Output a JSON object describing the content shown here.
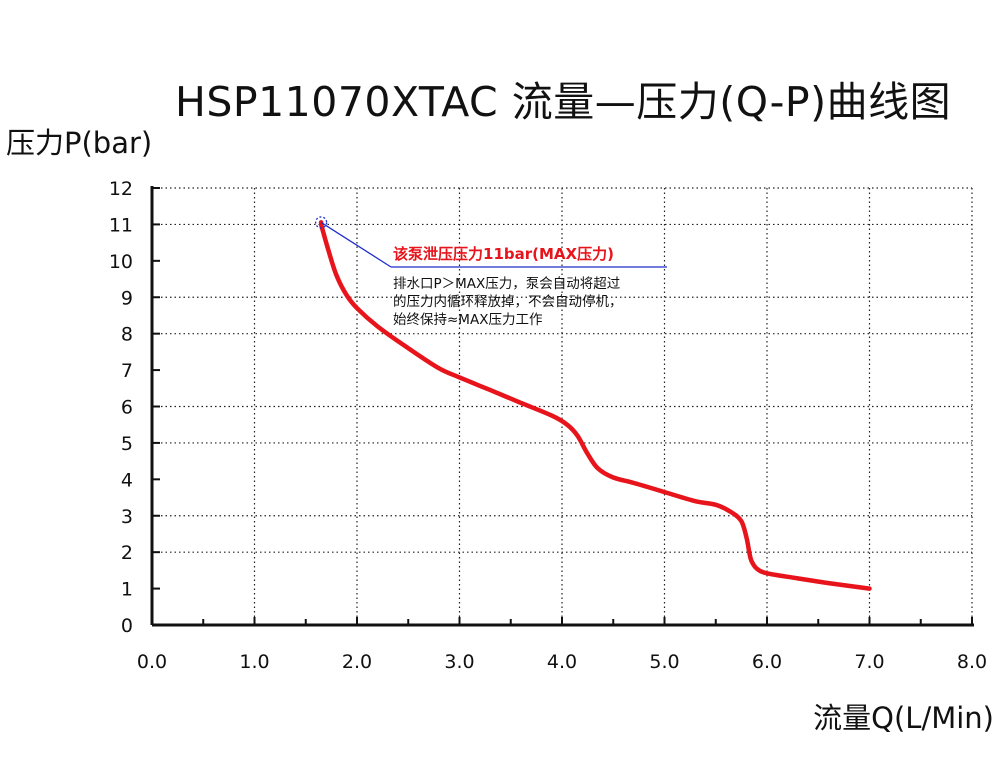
{
  "chart_data": {
    "type": "line",
    "title": "HSP11070XTAC 流量—压力(Q-P)曲线图",
    "xlabel": "流量Q(L/Min)",
    "ylabel": "压力P(bar)",
    "xlim": [
      0,
      8
    ],
    "ylim": [
      0,
      12
    ],
    "x_ticks": [
      "0.0",
      "1.0",
      "2.0",
      "3.0",
      "4.0",
      "5.0",
      "6.0",
      "7.0",
      "8.0"
    ],
    "y_ticks": [
      "0",
      "1",
      "2",
      "3",
      "4",
      "5",
      "6",
      "7",
      "8",
      "9",
      "10",
      "11",
      "12"
    ],
    "grid": true,
    "series": [
      {
        "color": "#e8141b",
        "x": [
          1.65,
          1.72,
          1.8,
          1.9,
          2.0,
          2.2,
          2.5,
          2.8,
          3.0,
          3.3,
          3.6,
          3.9,
          4.05,
          4.15,
          4.25,
          4.35,
          4.5,
          4.7,
          5.0,
          5.3,
          5.5,
          5.65,
          5.75,
          5.8,
          5.83,
          5.85,
          5.9,
          6.0,
          6.3,
          6.6,
          7.0
        ],
        "y": [
          11.0,
          10.3,
          9.6,
          9.05,
          8.7,
          8.2,
          7.6,
          7.05,
          6.8,
          6.45,
          6.1,
          5.75,
          5.5,
          5.2,
          4.7,
          4.3,
          4.05,
          3.9,
          3.65,
          3.4,
          3.3,
          3.1,
          2.85,
          2.4,
          1.95,
          1.75,
          1.55,
          1.42,
          1.28,
          1.15,
          1.0
        ]
      }
    ],
    "annotation": {
      "point": {
        "x": 1.65,
        "y": 11.0
      },
      "title": "该泵泄压压力11bar(MAX压力)",
      "lines": [
        "排水口P＞MAX压力，泵会自动将超过",
        "的压力内循环释放掉，不会自动停机，",
        "始终保持≈MAX压力工作"
      ],
      "title_color": "#e8141b",
      "leader_color": "#1f2ecc"
    }
  }
}
